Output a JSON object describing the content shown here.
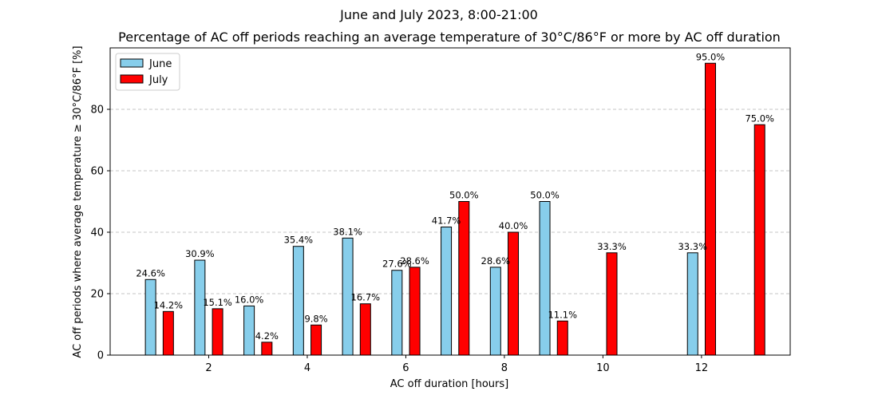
{
  "chart_data": {
    "type": "bar",
    "suptitle": "June and July 2023, 8:00-21:00",
    "title": "Percentage of AC off periods reaching an average temperature of 30°C/86°F or more by AC off duration",
    "xlabel": "AC off duration [hours]",
    "ylabel": "AC off periods where average temperature ≥ 30°C/86°F [%]",
    "xlim": [
      0,
      13.8
    ],
    "ylim": [
      0,
      100
    ],
    "xticks": [
      2,
      4,
      6,
      8,
      10,
      12
    ],
    "yticks": [
      0,
      20,
      40,
      60,
      80
    ],
    "grid": "y-dashed",
    "legend_position": "top-left",
    "series": [
      {
        "name": "June",
        "color": "#87CEEB",
        "offset": -0.18,
        "x": [
          1,
          2,
          3,
          4,
          5,
          6,
          7,
          8,
          9,
          12
        ],
        "values": [
          24.6,
          30.9,
          16.0,
          35.4,
          38.1,
          27.6,
          41.7,
          28.6,
          50.0,
          33.3
        ],
        "labels": [
          "24.6%",
          "30.9%",
          "16.0%",
          "35.4%",
          "38.1%",
          "27.6%",
          "41.7%",
          "28.6%",
          "50.0%",
          "33.3%"
        ]
      },
      {
        "name": "July",
        "color": "#FF0000",
        "offset": 0.18,
        "x": [
          1,
          2,
          3,
          4,
          5,
          6,
          7,
          8,
          9,
          10,
          12,
          13
        ],
        "values": [
          14.2,
          15.1,
          4.2,
          9.8,
          16.7,
          28.6,
          50.0,
          40.0,
          11.1,
          33.3,
          95.0,
          75.0
        ],
        "labels": [
          "14.2%",
          "15.1%",
          "4.2%",
          "9.8%",
          "16.7%",
          "28.6%",
          "50.0%",
          "40.0%",
          "11.1%",
          "33.3%",
          "95.0%",
          "75.0%"
        ]
      }
    ]
  }
}
